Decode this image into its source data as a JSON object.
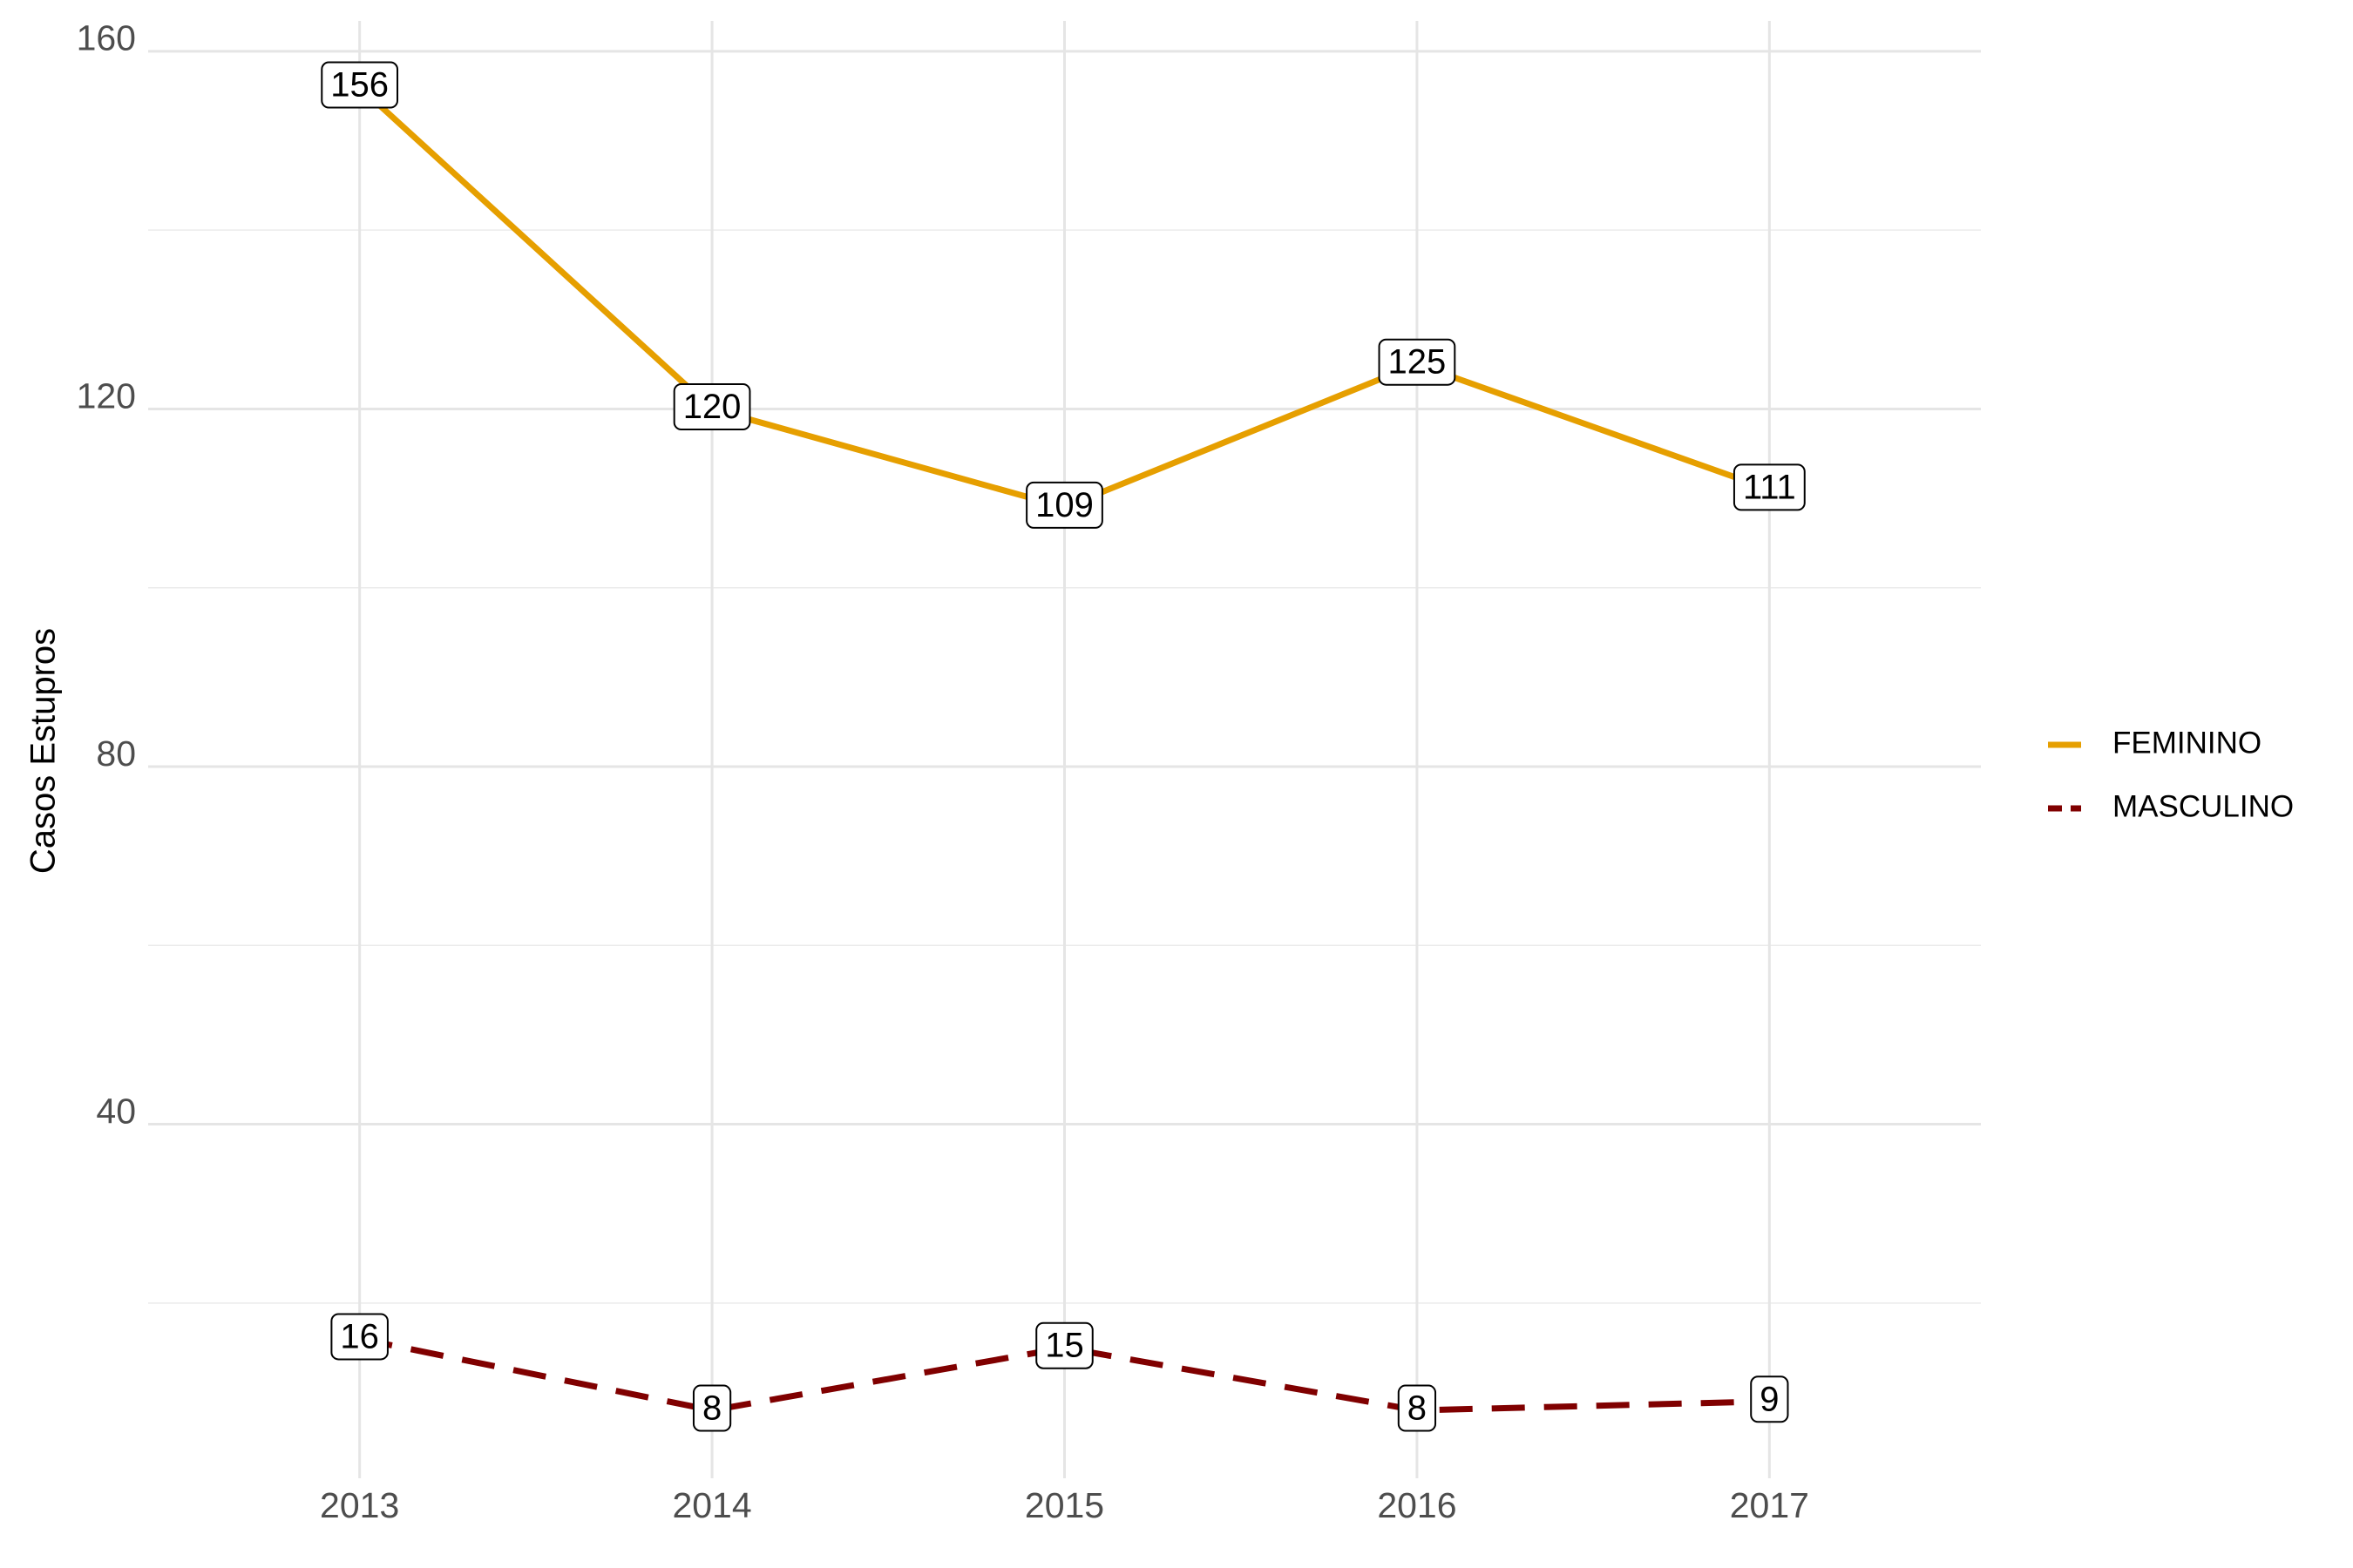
{
  "chart_data": {
    "type": "line",
    "y_label": "Casos Estupros",
    "x": [
      2013,
      2014,
      2015,
      2016,
      2017
    ],
    "xlim": [
      2012.4,
      2017.6
    ],
    "xticks": [
      2013,
      2014,
      2015,
      2016,
      2017
    ],
    "ylim": [
      0.4,
      163.4
    ],
    "yticks": [
      40,
      80,
      120,
      160
    ],
    "minor_yticks": [
      20,
      60,
      100,
      140
    ],
    "grid": true,
    "legend_position": "right",
    "series": [
      {
        "name": "FEMININO",
        "color": "#e69f00",
        "linetype": "solid",
        "values": [
          156,
          120,
          109,
          125,
          111
        ]
      },
      {
        "name": "MASCULINO",
        "color": "#800000",
        "linetype": "dashed",
        "values": [
          16,
          8,
          15,
          8,
          9
        ]
      }
    ]
  }
}
